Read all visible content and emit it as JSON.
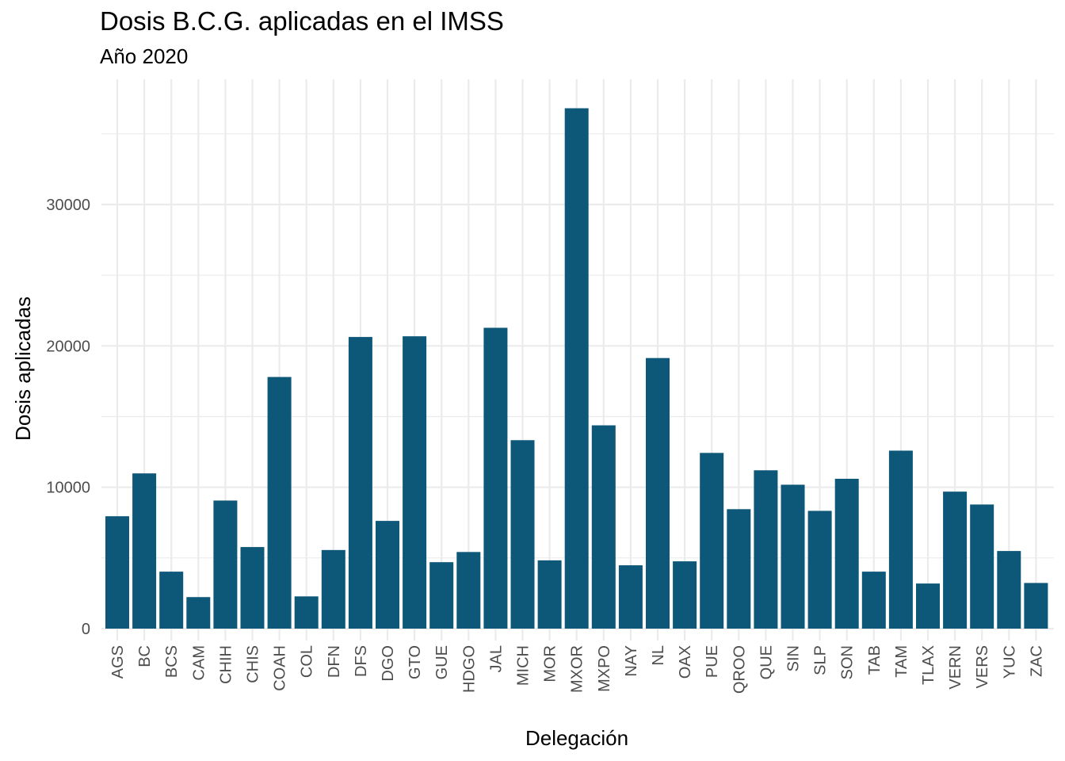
{
  "chart_data": {
    "type": "bar",
    "title": "Dosis B.C.G. aplicadas en el IMSS",
    "subtitle": "Año 2020",
    "xlabel": "Delegación",
    "ylabel": "Dosis aplicadas",
    "categories": [
      "AGS",
      "BC",
      "BCS",
      "CAM",
      "CHIH",
      "CHIS",
      "COAH",
      "COL",
      "DFN",
      "DFS",
      "DGO",
      "GTO",
      "GUE",
      "HDGO",
      "JAL",
      "MICH",
      "MOR",
      "MXOR",
      "MXPO",
      "NAY",
      "NL",
      "OAX",
      "PUE",
      "QROO",
      "QUE",
      "SIN",
      "SLP",
      "SON",
      "TAB",
      "TAM",
      "TLAX",
      "VERN",
      "VERS",
      "YUC",
      "ZAC"
    ],
    "values": [
      7950,
      10980,
      4030,
      2230,
      9060,
      5770,
      17800,
      2280,
      5560,
      20630,
      7620,
      20680,
      4700,
      5420,
      21280,
      13330,
      4830,
      36810,
      14380,
      4480,
      19140,
      4760,
      12430,
      8450,
      11200,
      10180,
      8330,
      10600,
      4030,
      12590,
      3190,
      9690,
      8780,
      5490,
      3230
    ],
    "ylim": [
      -1000,
      38700
    ],
    "yticks": [
      0,
      10000,
      20000,
      30000
    ],
    "ytick_labels": [
      "0",
      "10000",
      "20000",
      "30000"
    ],
    "grid": true,
    "bar_color": "#0d5778"
  }
}
